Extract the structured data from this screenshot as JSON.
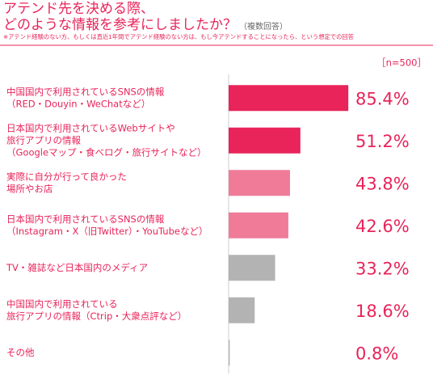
{
  "chart_data": {
    "type": "bar",
    "orientation": "horizontal",
    "title": [
      "アテンド先を決める際、",
      "どのような情報を参考にしましたか？"
    ],
    "subtitle": "（複数回答）",
    "note": "※アテンド経験のない方、もしくは直近1年間でアテンド経験のない方は、もし今アテンドすることになったら、という想定での回答",
    "sample_size": "［n=500］",
    "categories": [
      [
        "中国国内で利用されているSNSの情報",
        "（RED・Douyin・WeChatなど）"
      ],
      [
        "日本国内で利用されているWebサイトや",
        "旅行アプリの情報",
        "（Googleマップ・食べログ・旅行サイトなど）"
      ],
      [
        "実際に自分が行って良かった",
        "場所やお店"
      ],
      [
        "日本国内で利用されているSNSの情報",
        "（Instagram・X（旧Twitter）・YouTubeなど）"
      ],
      [
        "TV・雑誌など日本国内のメディア"
      ],
      [
        "中国国内で利用されている",
        "旅行アプリの情報（Ctrip・大衆点評など）"
      ],
      [
        "その他"
      ]
    ],
    "values": [
      85.4,
      51.2,
      43.8,
      42.6,
      33.2,
      18.6,
      0.8
    ],
    "value_labels": [
      "85.4%",
      "51.2%",
      "43.8%",
      "42.6%",
      "33.2%",
      "18.6%",
      "0.8%"
    ],
    "colors": [
      "#e8245a",
      "#e8245a",
      "#ef7b99",
      "#ef7b99",
      "#b3b3b3",
      "#b3b3b3",
      "#b3b3b3"
    ]
  }
}
